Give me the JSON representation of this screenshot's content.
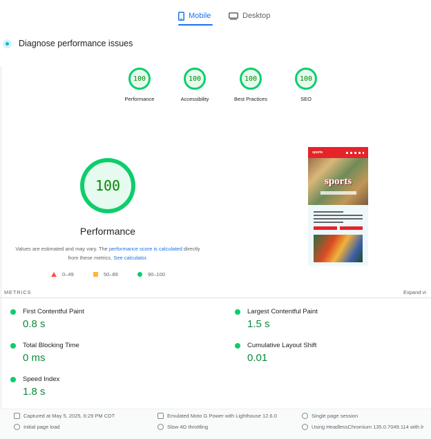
{
  "tabs": [
    {
      "label": "Mobile",
      "icon": "phone-icon",
      "active": true
    },
    {
      "label": "Desktop",
      "icon": "monitor-icon",
      "active": false
    }
  ],
  "diagnose": {
    "title": "Diagnose performance issues"
  },
  "categories": [
    {
      "score": "100",
      "label": "Performance"
    },
    {
      "score": "100",
      "label": "Accessibility"
    },
    {
      "score": "100",
      "label": "Best Practices"
    },
    {
      "score": "100",
      "label": "SEO"
    }
  ],
  "summary": {
    "score": "100",
    "title": "Performance",
    "note_pre": "Values are estimated and may vary. The ",
    "note_link": "performance score is calculated",
    "note_mid": " directly from these metrics. ",
    "note_link2": "See calculator."
  },
  "legend": [
    {
      "range": "0–49",
      "color": "#ff4e42"
    },
    {
      "range": "50–89",
      "color": "#ffa400"
    },
    {
      "range": "90–100",
      "color": "#0cce6b"
    }
  ],
  "screenshot": {
    "hero_text": "sports"
  },
  "metrics_header": "METRICS",
  "expand_label": "Expand vi",
  "metrics": [
    {
      "label": "First Contentful Paint",
      "value": "0.8 s"
    },
    {
      "label": "Largest Contentful Paint",
      "value": "1.5 s"
    },
    {
      "label": "Total Blocking Time",
      "value": "0 ms"
    },
    {
      "label": "Cumulative Layout Shift",
      "value": "0.01"
    },
    {
      "label": "Speed Index",
      "value": "1.8 s"
    }
  ],
  "footer": [
    {
      "text": "Captured at May 5, 2025, 6:29 PM CDT",
      "icon": "calendar-icon"
    },
    {
      "text": "Emulated Moto G Power with Lighthouse 12.6.0",
      "icon": "device-icon"
    },
    {
      "text": "Single page session",
      "icon": "people-icon"
    },
    {
      "text": "Initial page load",
      "icon": "timer-icon"
    },
    {
      "text": "Slow 4G throttling",
      "icon": "wifi-icon"
    },
    {
      "text": "Using HeadlessChromium 135.0.7049.114 with lr",
      "icon": "browser-icon"
    }
  ]
}
